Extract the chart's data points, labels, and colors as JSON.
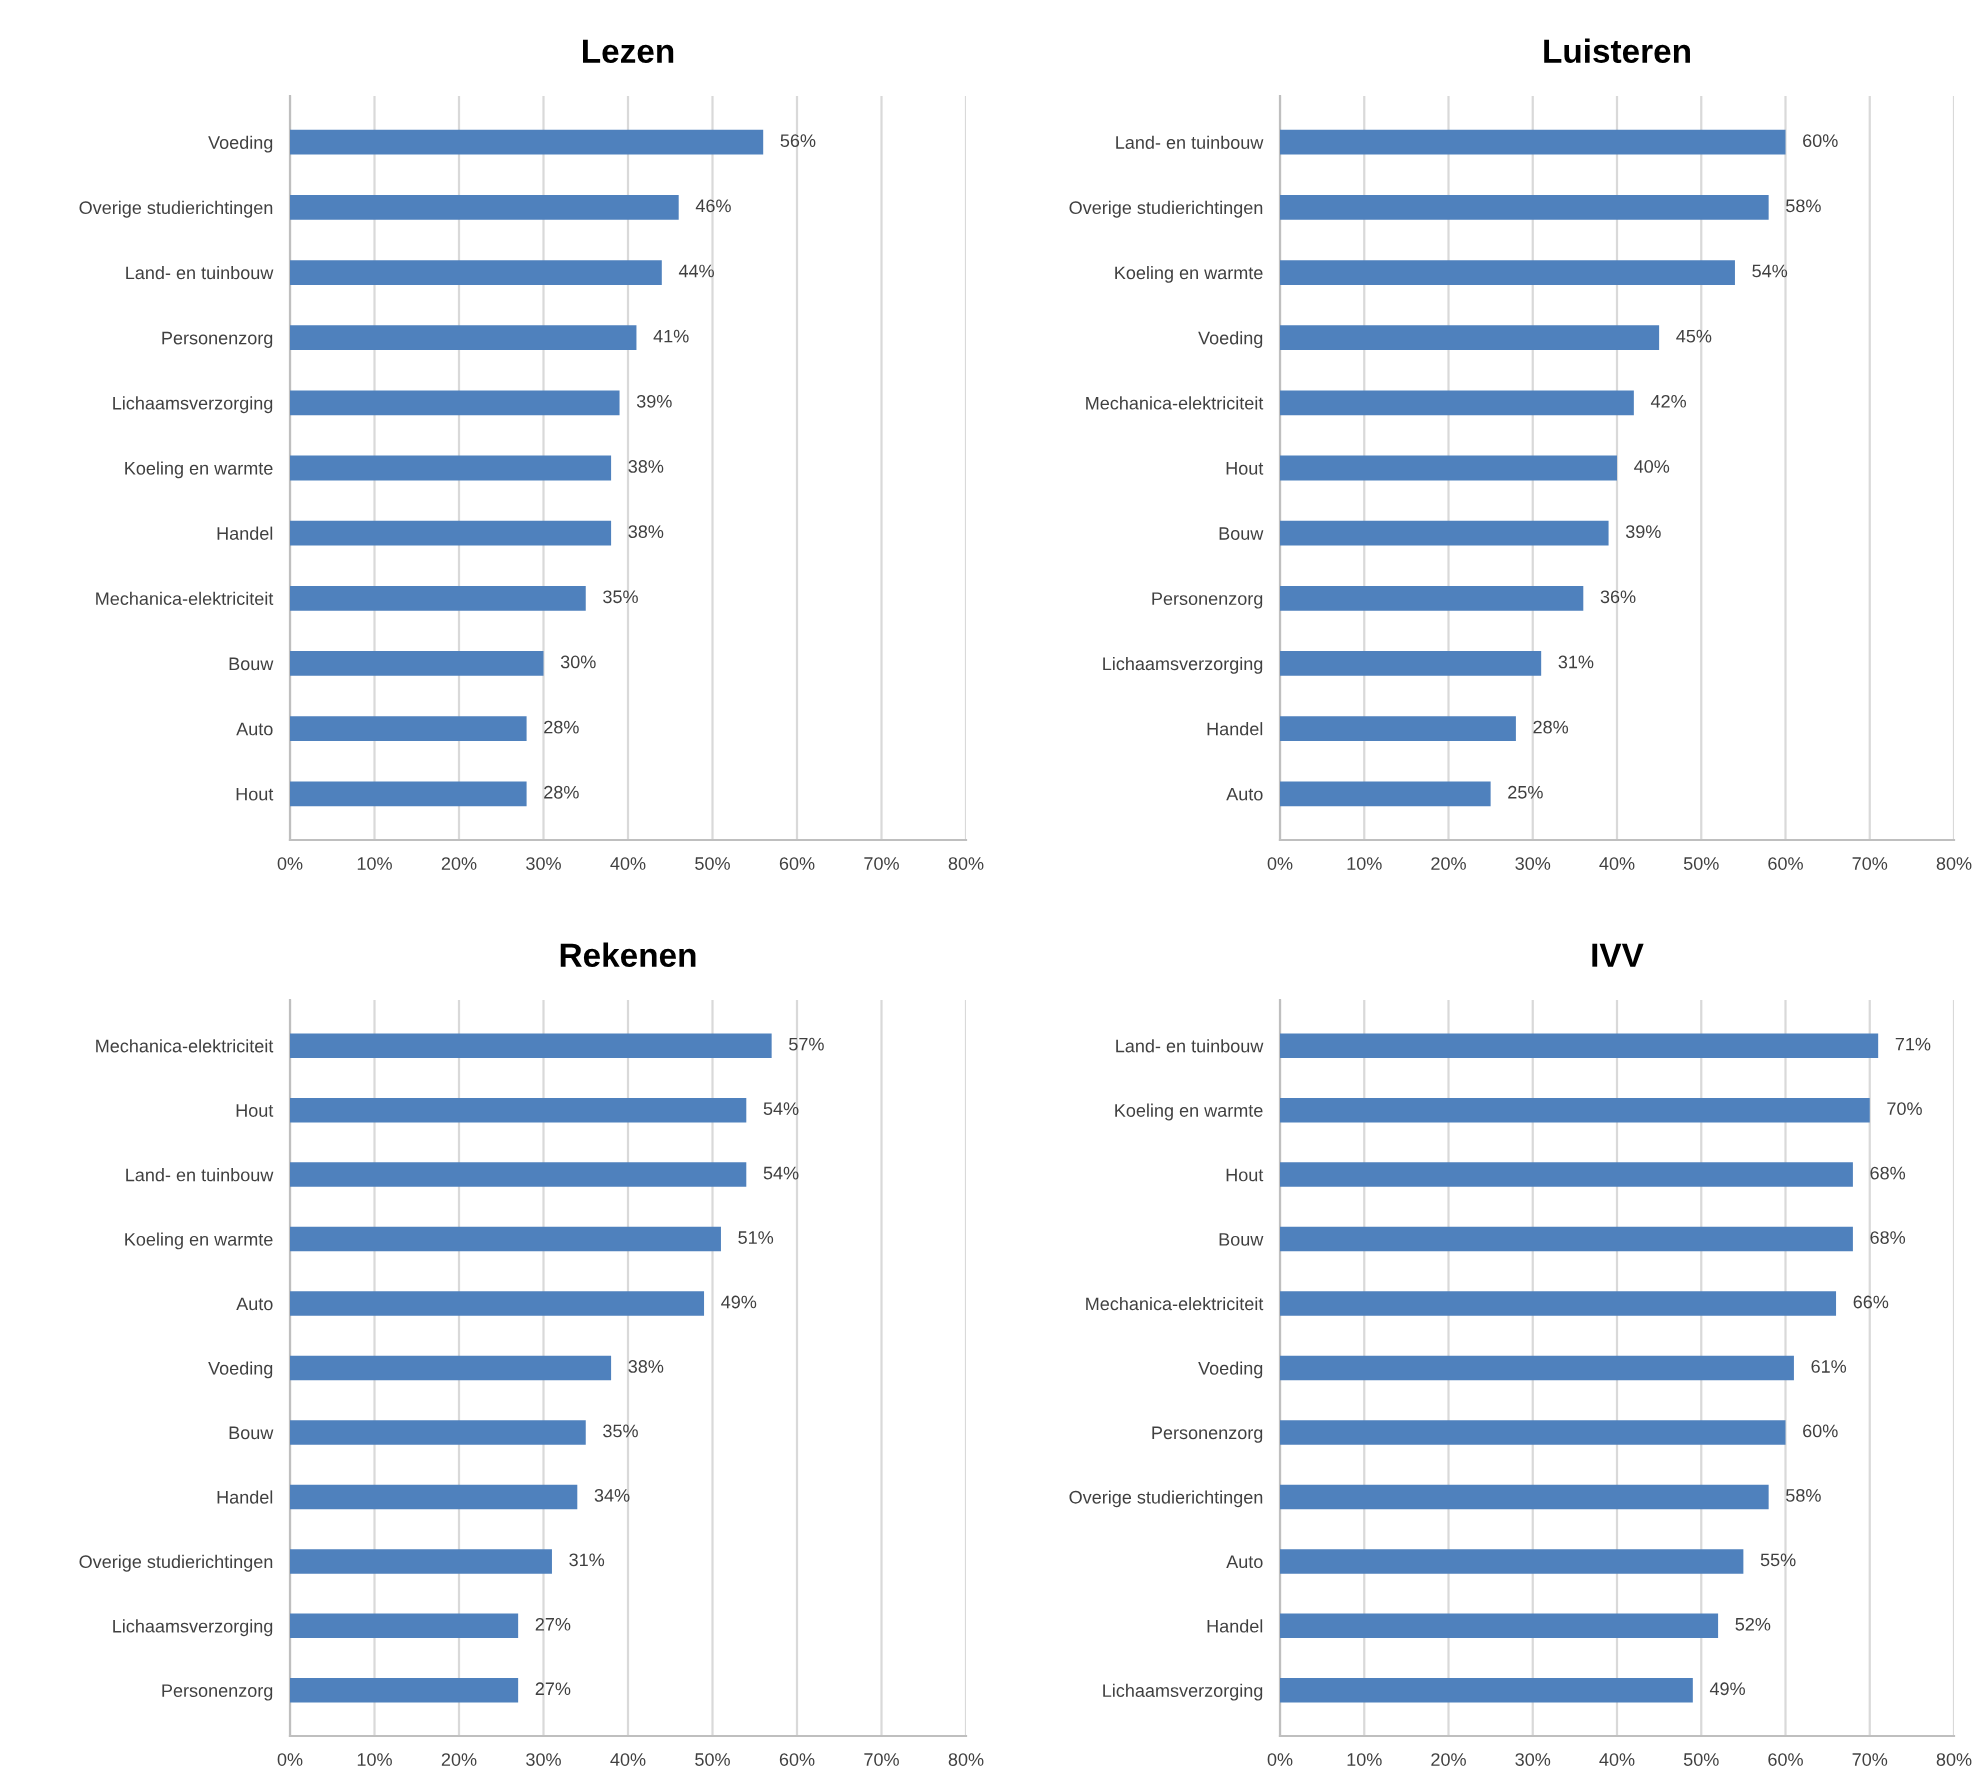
{
  "chart_data": [
    {
      "type": "bar",
      "orientation": "horizontal",
      "title": "Lezen",
      "categories": [
        "Voeding",
        "Overige studierichtingen",
        "Land- en tuinbouw",
        "Personenzorg",
        "Lichaamsverzorging",
        "Koeling en warmte",
        "Handel",
        "Mechanica-elektriciteit",
        "Bouw",
        "Auto",
        "Hout"
      ],
      "values": [
        56,
        46,
        44,
        41,
        39,
        38,
        38,
        35,
        30,
        28,
        28
      ],
      "value_labels": [
        "56%",
        "46%",
        "44%",
        "41%",
        "39%",
        "38%",
        "38%",
        "35%",
        "30%",
        "28%",
        "28%"
      ],
      "color": "#4f81bd",
      "xlim": [
        0,
        80
      ],
      "xticks": [
        {
          "value": 0,
          "label": "0%"
        },
        {
          "value": 10,
          "label": "10%"
        },
        {
          "value": 20,
          "label": "20%"
        },
        {
          "value": 30,
          "label": "30%"
        },
        {
          "value": 40,
          "label": "40%"
        },
        {
          "value": 50,
          "label": "50%"
        },
        {
          "value": 60,
          "label": "60%"
        },
        {
          "value": 70,
          "label": "70%"
        },
        {
          "value": 80,
          "label": "80%"
        }
      ],
      "grid": "x"
    },
    {
      "type": "bar",
      "orientation": "horizontal",
      "title": "Luisteren",
      "categories": [
        "Land- en tuinbouw",
        "Overige studierichtingen",
        "Koeling en warmte",
        "Voeding",
        "Mechanica-elektriciteit",
        "Hout",
        "Bouw",
        "Personenzorg",
        "Lichaamsverzorging",
        "Handel",
        "Auto"
      ],
      "values": [
        60,
        58,
        54,
        45,
        42,
        40,
        39,
        36,
        31,
        28,
        25
      ],
      "value_labels": [
        "60%",
        "58%",
        "54%",
        "45%",
        "42%",
        "40%",
        "39%",
        "36%",
        "31%",
        "28%",
        "25%"
      ],
      "color": "#4f81bd",
      "xlim": [
        0,
        80
      ],
      "xticks": [
        {
          "value": 0,
          "label": "0%"
        },
        {
          "value": 10,
          "label": "10%"
        },
        {
          "value": 20,
          "label": "20%"
        },
        {
          "value": 30,
          "label": "30%"
        },
        {
          "value": 40,
          "label": "40%"
        },
        {
          "value": 50,
          "label": "50%"
        },
        {
          "value": 60,
          "label": "60%"
        },
        {
          "value": 70,
          "label": "70%"
        },
        {
          "value": 80,
          "label": "80%"
        }
      ],
      "grid": "x"
    },
    {
      "type": "bar",
      "orientation": "horizontal",
      "title": "Rekenen",
      "categories": [
        "Mechanica-elektriciteit",
        "Hout",
        "Land- en tuinbouw",
        "Koeling en warmte",
        "Auto",
        "Voeding",
        "Bouw",
        "Handel",
        "Overige studierichtingen",
        "Lichaamsverzorging",
        "Personenzorg"
      ],
      "values": [
        57,
        54,
        54,
        51,
        49,
        38,
        35,
        34,
        31,
        27,
        27
      ],
      "value_labels": [
        "57%",
        "54%",
        "54%",
        "51%",
        "49%",
        "38%",
        "35%",
        "34%",
        "31%",
        "27%",
        "27%"
      ],
      "color": "#4f81bd",
      "xlim": [
        0,
        80
      ],
      "xticks": [
        {
          "value": 0,
          "label": "0%"
        },
        {
          "value": 10,
          "label": "10%"
        },
        {
          "value": 20,
          "label": "20%"
        },
        {
          "value": 30,
          "label": "30%"
        },
        {
          "value": 40,
          "label": "40%"
        },
        {
          "value": 50,
          "label": "50%"
        },
        {
          "value": 60,
          "label": "60%"
        },
        {
          "value": 70,
          "label": "70%"
        },
        {
          "value": 80,
          "label": "80%"
        }
      ],
      "grid": "x"
    },
    {
      "type": "bar",
      "orientation": "horizontal",
      "title": "IVV",
      "categories": [
        "Land- en tuinbouw",
        "Koeling en warmte",
        "Hout",
        "Bouw",
        "Mechanica-elektriciteit",
        "Voeding",
        "Personenzorg",
        "Overige studierichtingen",
        "Auto",
        "Handel",
        "Lichaamsverzorging"
      ],
      "values": [
        71,
        70,
        68,
        68,
        66,
        61,
        60,
        58,
        55,
        52,
        49
      ],
      "value_labels": [
        "71%",
        "70%",
        "68%",
        "68%",
        "66%",
        "61%",
        "60%",
        "58%",
        "55%",
        "52%",
        "49%"
      ],
      "color": "#4f81bd",
      "xlim": [
        0,
        80
      ],
      "xticks": [
        {
          "value": 0,
          "label": "0%"
        },
        {
          "value": 10,
          "label": "10%"
        },
        {
          "value": 20,
          "label": "20%"
        },
        {
          "value": 30,
          "label": "30%"
        },
        {
          "value": 40,
          "label": "40%"
        },
        {
          "value": 50,
          "label": "50%"
        },
        {
          "value": 60,
          "label": "60%"
        },
        {
          "value": 70,
          "label": "70%"
        },
        {
          "value": 80,
          "label": "80%"
        }
      ],
      "grid": "x"
    }
  ]
}
